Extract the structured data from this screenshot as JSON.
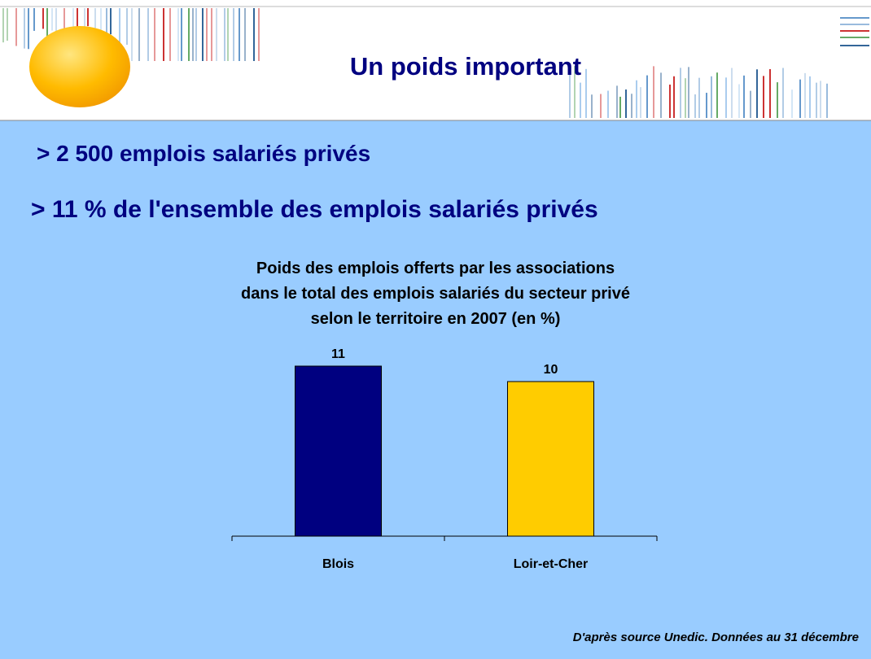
{
  "header": {
    "title": "Un poids important"
  },
  "bullets": [
    "> 2 500 emplois salariés privés",
    "> 11 % de l'ensemble des emplois salariés privés"
  ],
  "chart_data": {
    "type": "bar",
    "title": [
      "Poids des emplois offerts par les associations",
      "dans le total des emplois salariés du secteur privé",
      "selon le territoire en 2007 (en %)"
    ],
    "categories": [
      "Blois",
      "Loir-et-Cher"
    ],
    "series": [
      {
        "name": null,
        "values": [
          11,
          10
        ]
      }
    ],
    "colors": [
      "#000080",
      "#ffcc00"
    ]
  },
  "source": "D'après source Unedic. Données au 31 décembre"
}
